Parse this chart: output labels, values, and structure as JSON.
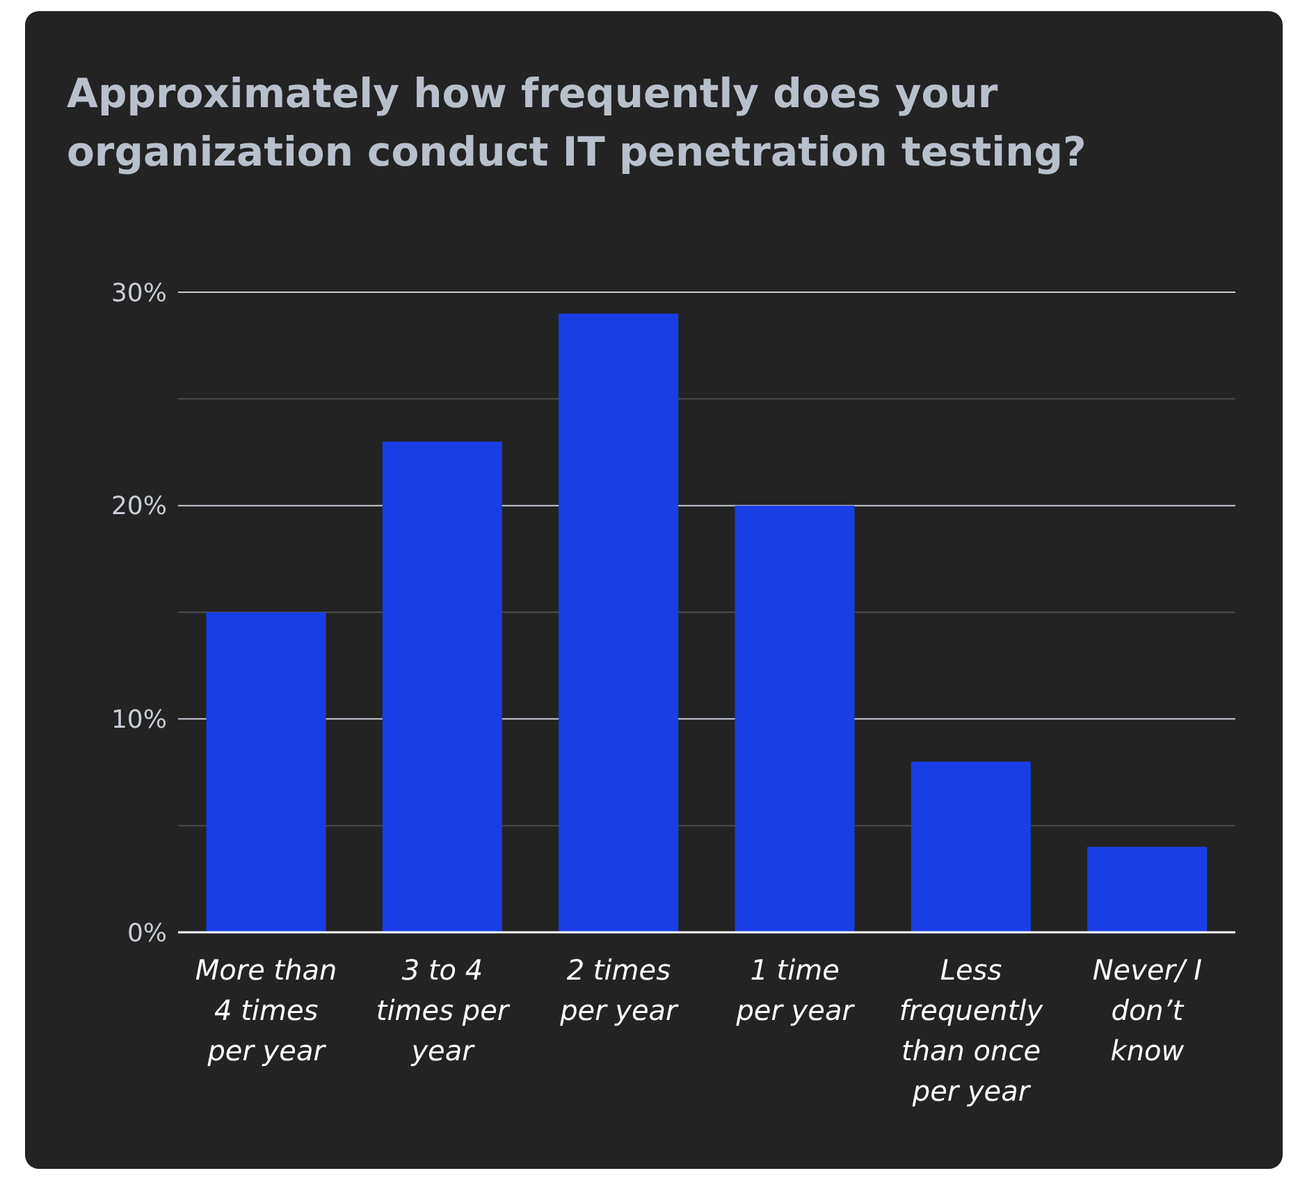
{
  "chart_data": {
    "type": "bar",
    "title": "Approximately how frequently does your organization conduct IT penetration testing?",
    "categories": [
      "More than 4 times per year",
      "3 to 4 times per year",
      "2 times per year",
      "1 time per year",
      "Less frequently than once per year",
      "Never/ I don’t know"
    ],
    "values": [
      15,
      23,
      29,
      20,
      8,
      4
    ],
    "color": "#1a3ee6",
    "ylim": [
      0,
      30
    ],
    "yticks": [
      {
        "value": 0,
        "label": "0%"
      },
      {
        "value": 5,
        "label": null
      },
      {
        "value": 10,
        "label": "10%"
      },
      {
        "value": 15,
        "label": null
      },
      {
        "value": 20,
        "label": "20%"
      },
      {
        "value": 25,
        "label": null
      },
      {
        "value": 30,
        "label": "30%"
      }
    ],
    "grid": true
  }
}
